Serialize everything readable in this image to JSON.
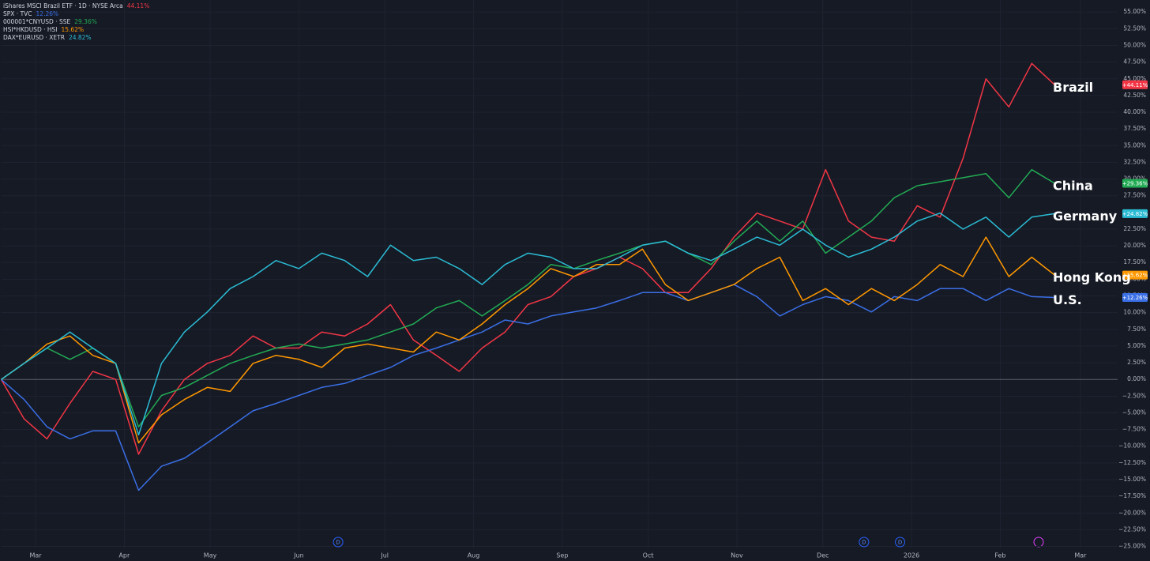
{
  "chart_data": {
    "type": "line",
    "x": [
      0,
      8,
      16,
      24,
      32,
      40,
      48,
      56,
      64,
      72,
      80,
      88,
      96,
      104,
      112,
      120,
      128,
      136,
      144,
      152,
      160,
      168,
      176,
      184,
      192,
      200,
      208,
      216,
      224,
      232,
      240,
      248,
      256,
      264,
      272,
      280,
      288,
      296,
      304,
      312,
      320,
      328,
      336,
      344,
      352,
      360,
      368
    ],
    "xlim": [
      0,
      390
    ],
    "xticks": [
      {
        "value": 12,
        "label": "Mar"
      },
      {
        "value": 43,
        "label": "Apr"
      },
      {
        "value": 73,
        "label": "May"
      },
      {
        "value": 104,
        "label": "Jun"
      },
      {
        "value": 134,
        "label": "Jul"
      },
      {
        "value": 165,
        "label": "Aug"
      },
      {
        "value": 196,
        "label": "Sep"
      },
      {
        "value": 226,
        "label": "Oct"
      },
      {
        "value": 257,
        "label": "Nov"
      },
      {
        "value": 287,
        "label": "Dec"
      },
      {
        "value": 318,
        "label": "2026"
      },
      {
        "value": 349,
        "label": "Feb"
      },
      {
        "value": 377,
        "label": "Mar"
      }
    ],
    "ylim": [
      -26,
      56.8
    ],
    "yticks": [
      {
        "value": 55,
        "label": "55.00%"
      },
      {
        "value": 52.5,
        "label": "52.50%"
      },
      {
        "value": 50,
        "label": "50.00%"
      },
      {
        "value": 47.5,
        "label": "47.50%"
      },
      {
        "value": 45,
        "label": "45.00%"
      },
      {
        "value": 42.5,
        "label": "42.50%"
      },
      {
        "value": 40,
        "label": "40.00%"
      },
      {
        "value": 37.5,
        "label": "37.50%"
      },
      {
        "value": 35,
        "label": "35.00%"
      },
      {
        "value": 32.5,
        "label": "32.50%"
      },
      {
        "value": 30,
        "label": "30.00%"
      },
      {
        "value": 27.5,
        "label": "27.50%"
      },
      {
        "value": 25,
        "label": "25.00%"
      },
      {
        "value": 22.5,
        "label": "22.50%"
      },
      {
        "value": 20,
        "label": "20.00%"
      },
      {
        "value": 17.5,
        "label": "17.50%"
      },
      {
        "value": 15,
        "label": "15.00%"
      },
      {
        "value": 12.5,
        "label": "12.50%"
      },
      {
        "value": 10,
        "label": "10.00%"
      },
      {
        "value": 7.5,
        "label": "7.50%"
      },
      {
        "value": 5,
        "label": "5.00%"
      },
      {
        "value": 2.5,
        "label": "2.50%"
      },
      {
        "value": 0,
        "label": "0.00%"
      },
      {
        "value": -2.5,
        "label": "−2.50%"
      },
      {
        "value": -5,
        "label": "−5.00%"
      },
      {
        "value": -7.5,
        "label": "−7.50%"
      },
      {
        "value": -10,
        "label": "−10.00%"
      },
      {
        "value": -12.5,
        "label": "−12.50%"
      },
      {
        "value": -15,
        "label": "−15.00%"
      },
      {
        "value": -17.5,
        "label": "−17.50%"
      },
      {
        "value": -20,
        "label": "−20.00%"
      },
      {
        "value": -22.5,
        "label": "−22.50%"
      },
      {
        "value": -25,
        "label": "−25.00%"
      }
    ],
    "grid": true,
    "markers": [
      {
        "x": 117.7,
        "label": "D"
      },
      {
        "x": 301.4,
        "label": "D"
      },
      {
        "x": 314,
        "label": "D"
      }
    ],
    "series": [
      {
        "name": "iShares MSCI Brazil ETF · 1D · NYSE Arca",
        "legend_value": "44.11%",
        "tag": "+44.11%",
        "label": "Brazil",
        "color": "#f23645",
        "values": [
          0,
          -5.9,
          -8.9,
          -3.6,
          1.2,
          0,
          -11.2,
          -4.7,
          0,
          2.4,
          3.6,
          6.5,
          4.7,
          4.7,
          7.1,
          6.5,
          8.3,
          11.2,
          5.9,
          3.6,
          1.2,
          4.7,
          7.1,
          11.2,
          12.4,
          15.4,
          16.6,
          18.3,
          16.6,
          13.0,
          13.0,
          16.6,
          21.3,
          24.9,
          23.7,
          22.5,
          31.4,
          23.7,
          21.3,
          20.7,
          26.0,
          24.3,
          33.1,
          45.0,
          40.8,
          47.3,
          44.11
        ]
      },
      {
        "name": "SPX · TVC",
        "legend_value": "12.26%",
        "tag": "+12.26%",
        "label": "U.S.",
        "color": "#3a6fe6",
        "values": [
          0,
          -3.0,
          -7.1,
          -8.9,
          -7.7,
          -7.7,
          -16.6,
          -13.0,
          -11.8,
          -9.5,
          -7.1,
          -4.7,
          -3.6,
          -2.4,
          -1.2,
          -0.6,
          0.6,
          1.8,
          3.6,
          4.7,
          5.9,
          7.1,
          8.9,
          8.3,
          9.5,
          10.1,
          10.7,
          11.8,
          13.0,
          13.0,
          11.8,
          13.0,
          14.2,
          12.4,
          9.5,
          11.2,
          12.4,
          11.8,
          10.1,
          12.4,
          11.8,
          13.6,
          13.6,
          11.8,
          13.6,
          12.4,
          12.26
        ]
      },
      {
        "name": "000001*CNYUSD · SSE",
        "legend_value": "29.36%",
        "tag": "+29.36%",
        "label": "China",
        "color": "#22ab54",
        "values": [
          0,
          2.4,
          4.7,
          3.0,
          4.7,
          2.4,
          -7.1,
          -2.4,
          -1.2,
          0.6,
          2.4,
          3.6,
          4.7,
          5.3,
          4.7,
          5.3,
          5.9,
          7.1,
          8.3,
          10.7,
          11.8,
          9.5,
          11.8,
          14.2,
          17.2,
          16.6,
          17.8,
          18.9,
          20.1,
          20.7,
          18.9,
          17.2,
          20.7,
          23.7,
          20.7,
          23.7,
          18.9,
          21.3,
          23.7,
          27.2,
          29.0,
          29.6,
          30.2,
          30.8,
          27.2,
          31.4,
          29.36
        ]
      },
      {
        "name": "HSI*HKDUSD · HSI",
        "legend_value": "15.62%",
        "tag": "+15.62%",
        "label": "Hong Kong",
        "color": "#ff9800",
        "values": [
          0,
          2.4,
          5.3,
          6.5,
          3.6,
          2.4,
          -9.5,
          -5.3,
          -3.0,
          -1.2,
          -1.8,
          2.4,
          3.6,
          3.0,
          1.8,
          4.7,
          5.3,
          4.7,
          4.1,
          7.1,
          5.9,
          8.3,
          11.2,
          13.6,
          16.6,
          15.4,
          17.2,
          17.2,
          19.5,
          14.2,
          11.8,
          13.0,
          14.2,
          16.6,
          18.3,
          11.8,
          13.6,
          11.2,
          13.6,
          11.8,
          14.2,
          17.2,
          15.4,
          21.3,
          15.4,
          18.3,
          15.62
        ]
      },
      {
        "name": "DAX*EURUSD · XETR",
        "legend_value": "24.82%",
        "tag": "+24.82%",
        "label": "Germany",
        "color": "#2bbcd4",
        "values": [
          0,
          2.4,
          4.7,
          7.1,
          4.7,
          2.4,
          -8.3,
          2.4,
          7.1,
          10.1,
          13.6,
          15.4,
          17.8,
          16.6,
          18.9,
          17.8,
          15.4,
          20.1,
          17.8,
          18.3,
          16.6,
          14.2,
          17.2,
          18.9,
          18.3,
          16.6,
          16.6,
          18.3,
          20.1,
          20.7,
          18.9,
          17.8,
          19.5,
          21.3,
          20.1,
          22.5,
          20.1,
          18.3,
          19.5,
          21.3,
          23.7,
          24.9,
          22.5,
          24.3,
          21.3,
          24.3,
          24.82
        ]
      }
    ]
  }
}
